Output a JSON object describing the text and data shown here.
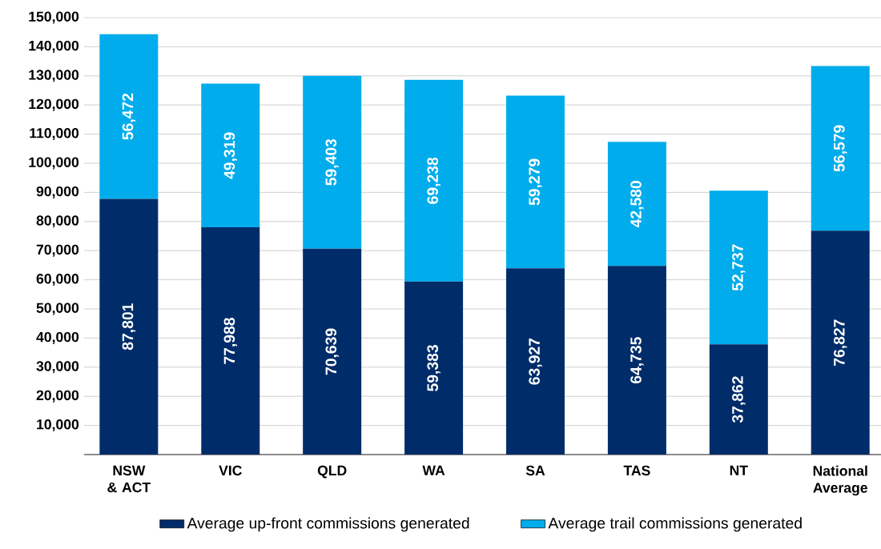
{
  "chart_data": {
    "type": "bar",
    "stacked": true,
    "categories": [
      "NSW & ACT",
      "VIC",
      "QLD",
      "WA",
      "SA",
      "TAS",
      "NT",
      "National Average"
    ],
    "series": [
      {
        "name": "Average up-front commissions generated",
        "color": "#002d6a",
        "values": [
          87801,
          77988,
          70639,
          59383,
          63927,
          64735,
          37862,
          76827
        ],
        "value_labels": [
          "87,801",
          "77,988",
          "70,639",
          "59,383",
          "63,927",
          "64,735",
          "37,862",
          "76,827"
        ]
      },
      {
        "name": "Average trail commissions generated",
        "color": "#00acec",
        "values": [
          56472,
          49319,
          59403,
          69238,
          59279,
          42580,
          52737,
          56579
        ],
        "value_labels": [
          "56,472",
          "49,319",
          "59,403",
          "69,238",
          "59,279",
          "42,580",
          "52,737",
          "56,579"
        ]
      }
    ],
    "ylim": [
      0,
      150000
    ],
    "yticks": [
      {
        "value": 0,
        "label": null
      },
      {
        "value": 10000,
        "label": "10,000"
      },
      {
        "value": 20000,
        "label": "20,000"
      },
      {
        "value": 30000,
        "label": "30,000"
      },
      {
        "value": 40000,
        "label": "40,000"
      },
      {
        "value": 50000,
        "label": "50,000"
      },
      {
        "value": 60000,
        "label": "60,000"
      },
      {
        "value": 70000,
        "label": "70,000"
      },
      {
        "value": 80000,
        "label": "80,000"
      },
      {
        "value": 90000,
        "label": "90,000"
      },
      {
        "value": 100000,
        "label": "100,000"
      },
      {
        "value": 110000,
        "label": "110,000"
      },
      {
        "value": 120000,
        "label": "120,000"
      },
      {
        "value": 130000,
        "label": "130,000"
      },
      {
        "value": 140000,
        "label": "140,000"
      },
      {
        "value": 150000,
        "label": "150,000"
      }
    ],
    "grid": "y",
    "legend": "bottom"
  }
}
